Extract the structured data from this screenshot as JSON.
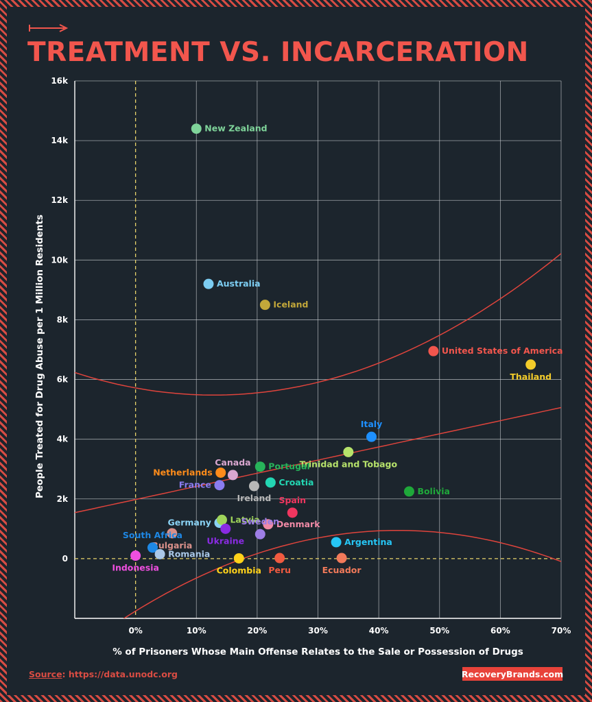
{
  "title": "TREATMENT VS. INCARCERATION",
  "source": {
    "label": "Source",
    "url": ": https://data.unodc.org"
  },
  "brand": "RecoveryBrands.com",
  "colors": {
    "accent": "#f2564d",
    "background": "#1c252d",
    "grid": "#c9cdd1",
    "fit_line": "#e0443c",
    "dashed": "#e9d46a"
  },
  "chart_data": {
    "type": "scatter",
    "title": "TREATMENT VS. INCARCERATION",
    "xlabel": "% of Prisoners Whose Main Offense Relates to the Sale or Possession of Drugs",
    "ylabel": "People Treated for Drug Abuse per 1 Million Residents",
    "xlim": [
      -10,
      70
    ],
    "ylim": [
      -2000,
      16000
    ],
    "x_ticks": [
      0,
      10,
      20,
      30,
      40,
      50,
      60,
      70
    ],
    "x_tick_labels": [
      "0%",
      "10%",
      "20%",
      "30%",
      "40%",
      "50%",
      "60%",
      "70%"
    ],
    "y_ticks": [
      0,
      2000,
      4000,
      6000,
      8000,
      10000,
      12000,
      14000,
      16000
    ],
    "y_tick_labels": [
      "0",
      "2k",
      "4k",
      "6k",
      "8k",
      "10k",
      "12k",
      "14k",
      "16k"
    ],
    "grid": true,
    "reference_lines": [
      "x = 0 (dashed)",
      "y = 0 (dashed)"
    ],
    "trend": {
      "type": "linear with confidence band",
      "intercept": 1980,
      "slope": 44
    },
    "points": [
      {
        "name": "New Zealand",
        "x": 10,
        "y": 14400,
        "color": "#7fd49a",
        "label_pos": "right"
      },
      {
        "name": "Australia",
        "x": 12,
        "y": 9200,
        "color": "#7ccdf2",
        "label_pos": "right"
      },
      {
        "name": "Iceland",
        "x": 21.3,
        "y": 8500,
        "color": "#c3a83a",
        "label_pos": "right"
      },
      {
        "name": "United States of America",
        "x": 49,
        "y": 6950,
        "color": "#f2564d",
        "label_pos": "right"
      },
      {
        "name": "Thailand",
        "x": 65,
        "y": 6500,
        "color": "#f3cc2a",
        "label_pos": "below"
      },
      {
        "name": "Italy",
        "x": 38.8,
        "y": 4080,
        "color": "#1e90ff",
        "label_pos": "above"
      },
      {
        "name": "Trinidad and Tobago",
        "x": 35,
        "y": 3570,
        "color": "#b7e36b",
        "label_pos": "below"
      },
      {
        "name": "Canada",
        "x": 16,
        "y": 2800,
        "color": "#d9a6cf",
        "label_pos": "above"
      },
      {
        "name": "Portugal",
        "x": 20.5,
        "y": 3080,
        "color": "#27b35a",
        "label_pos": "right"
      },
      {
        "name": "Netherlands",
        "x": 14,
        "y": 2880,
        "color": "#ff8c1a",
        "label_pos": "left"
      },
      {
        "name": "Croatia",
        "x": 22.2,
        "y": 2550,
        "color": "#23d6b3",
        "label_pos": "right"
      },
      {
        "name": "France",
        "x": 13.8,
        "y": 2460,
        "color": "#8a7cf0",
        "label_pos": "left"
      },
      {
        "name": "Ireland",
        "x": 19.5,
        "y": 2430,
        "color": "#b8b8b8",
        "label_pos": "below"
      },
      {
        "name": "Bolivia",
        "x": 45,
        "y": 2250,
        "color": "#1fa83a",
        "label_pos": "right"
      },
      {
        "name": "Spain",
        "x": 25.8,
        "y": 1540,
        "color": "#f0365f",
        "label_pos": "above"
      },
      {
        "name": "Germany",
        "x": 13.8,
        "y": 1200,
        "color": "#8ad3f5",
        "label_pos": "left"
      },
      {
        "name": "Latvia",
        "x": 14.2,
        "y": 1300,
        "color": "#9fd45a",
        "label_pos": "right"
      },
      {
        "name": "Denmark",
        "x": 21.8,
        "y": 1150,
        "color": "#f08aa6",
        "label_pos": "right"
      },
      {
        "name": "Ukraine",
        "x": 14.8,
        "y": 1000,
        "color": "#8a2be2",
        "label_pos": "below"
      },
      {
        "name": "Sweden",
        "x": 20.5,
        "y": 820,
        "color": "#9d7ee6",
        "label_pos": "above"
      },
      {
        "name": "Bulgaria",
        "x": 6,
        "y": 850,
        "color": "#d9908a",
        "label_pos": "below"
      },
      {
        "name": "South Africa",
        "x": 2.8,
        "y": 370,
        "color": "#1e88e5",
        "label_pos": "above"
      },
      {
        "name": "Argentina",
        "x": 33,
        "y": 550,
        "color": "#26c6f5",
        "label_pos": "right"
      },
      {
        "name": "Romania",
        "x": 4,
        "y": 150,
        "color": "#aac8e8",
        "label_pos": "right"
      },
      {
        "name": "Indonesia",
        "x": 0,
        "y": 100,
        "color": "#f04fe0",
        "label_pos": "below"
      },
      {
        "name": "Colombia",
        "x": 17,
        "y": 10,
        "color": "#ffd21a",
        "label_pos": "below"
      },
      {
        "name": "Peru",
        "x": 23.7,
        "y": 20,
        "color": "#f05a40",
        "label_pos": "below"
      },
      {
        "name": "Ecuador",
        "x": 33.9,
        "y": 20,
        "color": "#f27a5a",
        "label_pos": "below"
      }
    ]
  }
}
